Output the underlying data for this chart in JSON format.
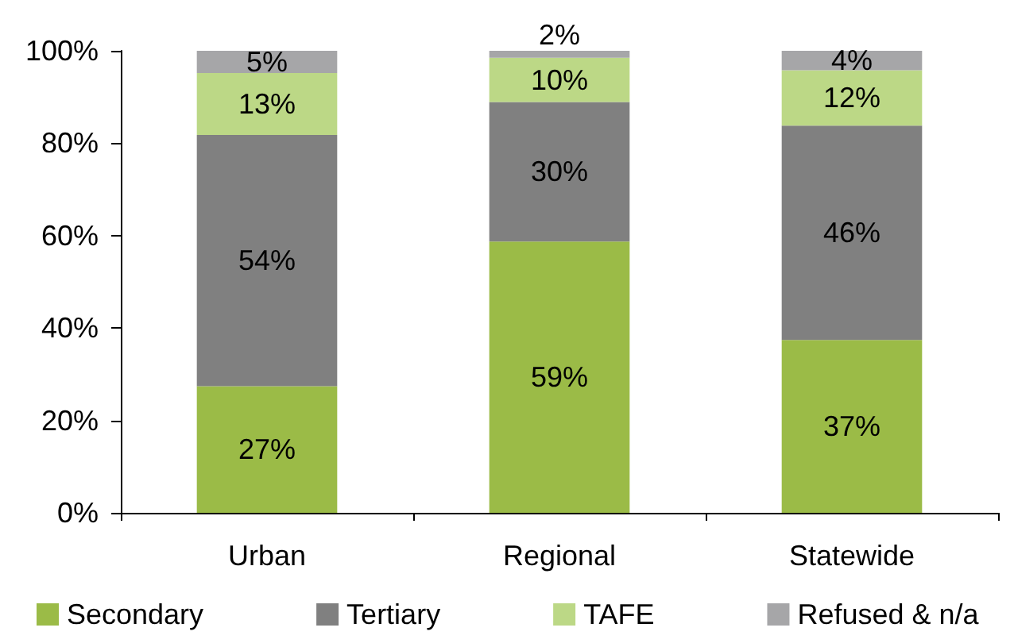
{
  "chart_data": {
    "type": "bar",
    "stacked": true,
    "categories": [
      "Urban",
      "Regional",
      "Statewide"
    ],
    "series": [
      {
        "name": "Secondary",
        "color": "#9bbb47",
        "values": [
          27.4,
          58.7,
          37.4
        ],
        "value_labels": [
          "27%",
          "59%",
          "37%"
        ]
      },
      {
        "name": "Tertiary",
        "color": "#808080",
        "values": [
          54.4,
          30.2,
          46.4
        ],
        "value_labels": [
          "54%",
          "30%",
          "46%"
        ]
      },
      {
        "name": "TAFE",
        "color": "#bcd886",
        "values": [
          13.4,
          9.6,
          12.0
        ],
        "value_labels": [
          "13%",
          "10%",
          "12%"
        ]
      },
      {
        "name": "Refused & n/a",
        "color": "#a6a6a8",
        "values": [
          4.8,
          1.5,
          4.2
        ],
        "value_labels": [
          "5%",
          "2%",
          "4%"
        ]
      }
    ],
    "ylim": [
      0,
      100
    ],
    "yticks": [
      {
        "value": 0,
        "label": "0%"
      },
      {
        "value": 20,
        "label": "20%"
      },
      {
        "value": 40,
        "label": "40%"
      },
      {
        "value": 60,
        "label": "60%"
      },
      {
        "value": 80,
        "label": "80%"
      },
      {
        "value": 100,
        "label": "100%"
      }
    ],
    "grid": false,
    "legend": "bottom"
  }
}
